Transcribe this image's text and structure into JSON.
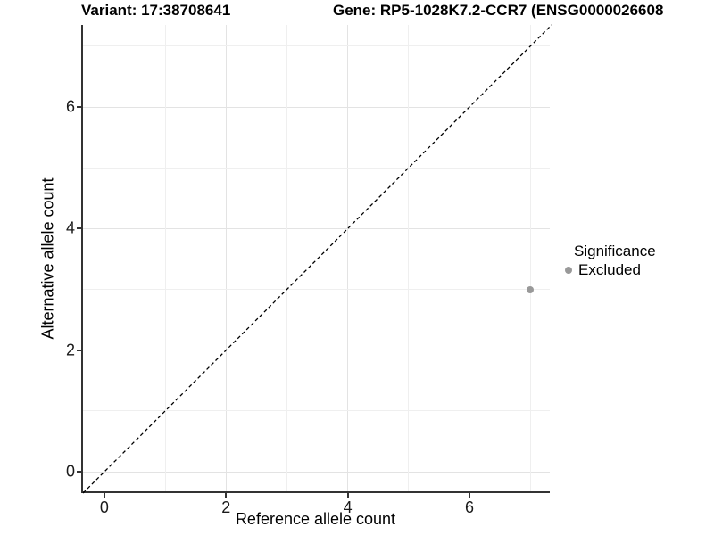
{
  "titles": {
    "variant": "Variant: 17:38708641",
    "gene": "Gene: RP5-1028K7.2-CCR7 (ENSG0000026608"
  },
  "chart_data": {
    "type": "scatter",
    "title_left": "Variant: 17:38708641",
    "title_right": "Gene: RP5-1028K7.2-CCR7 (ENSG0000026608",
    "xlabel": "Reference allele count",
    "ylabel": "Alternative allele count",
    "xlim": [
      -0.35,
      7.35
    ],
    "ylim": [
      -0.35,
      7.35
    ],
    "x_ticks": [
      0,
      2,
      4,
      6
    ],
    "y_ticks": [
      0,
      2,
      4,
      6
    ],
    "x_minor_ticks": [
      1,
      3,
      5,
      7
    ],
    "y_minor_ticks": [
      1,
      3,
      5,
      7
    ],
    "grid": true,
    "identity_line": {
      "style": "dashed",
      "color": "#000000",
      "slope": 1,
      "intercept": 0
    },
    "series": [
      {
        "name": "Excluded",
        "color": "#999999",
        "points": [
          {
            "x": 7,
            "y": 3
          }
        ]
      }
    ],
    "legend": {
      "title": "Significance",
      "position": "right",
      "items": [
        {
          "label": "Excluded",
          "color": "#999999"
        }
      ]
    }
  },
  "colors": {
    "background": "#ffffff",
    "grid_major": "#e3e3e3",
    "grid_minor": "#efefef",
    "axis_line": "#333333",
    "point": "#999999"
  }
}
